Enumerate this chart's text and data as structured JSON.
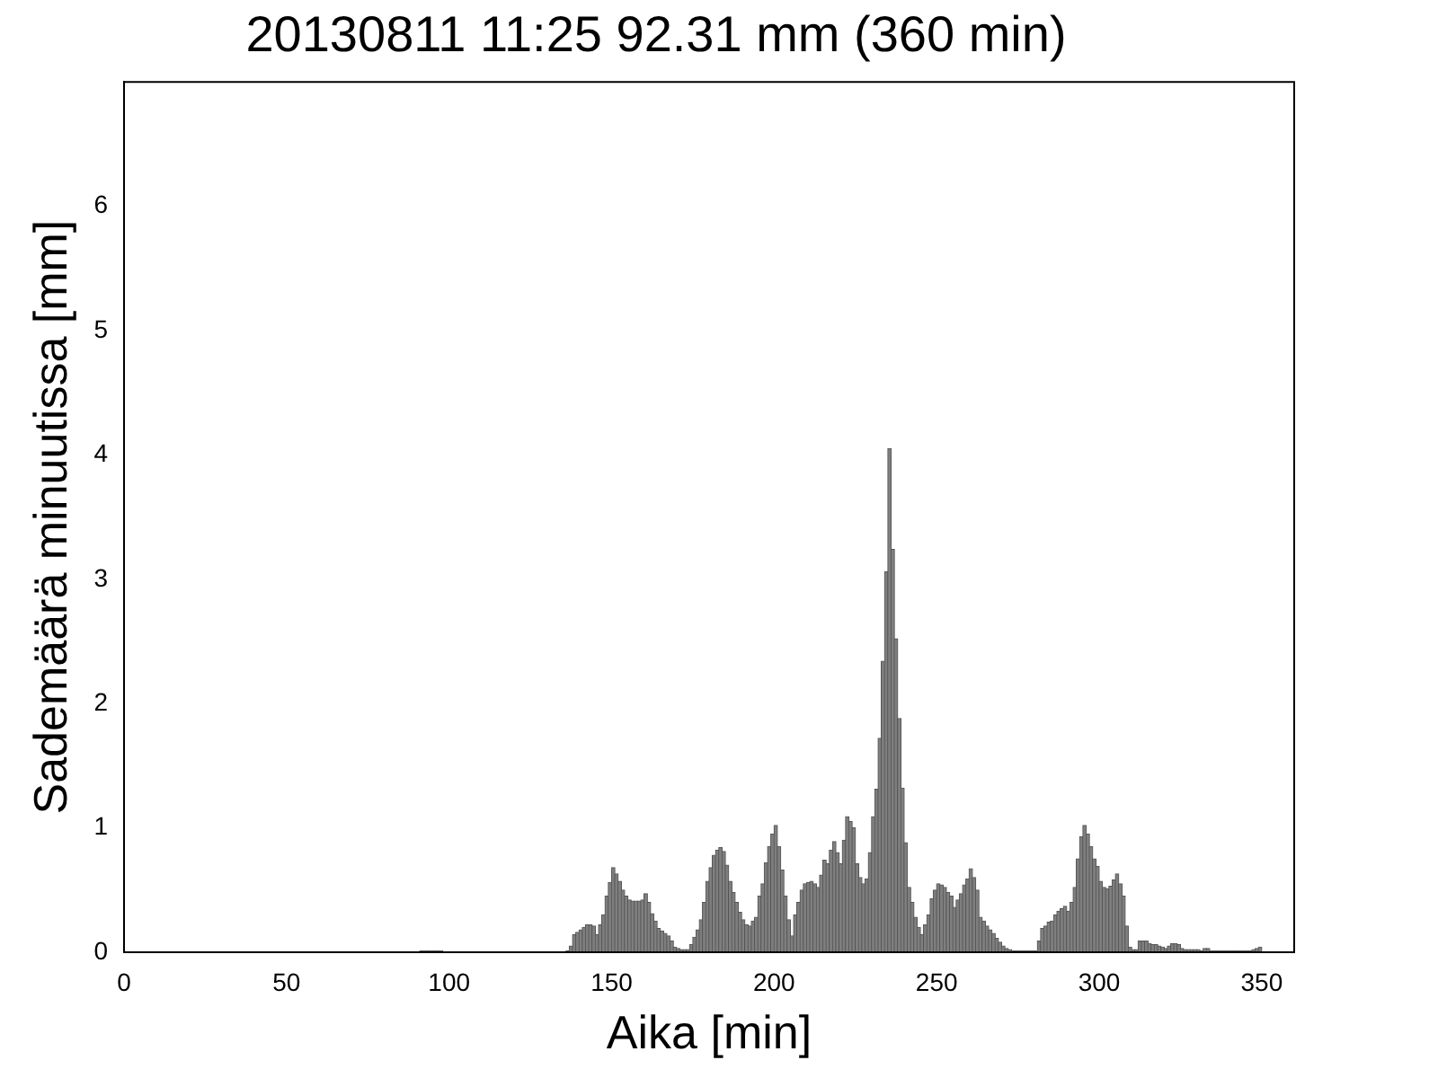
{
  "chart_data": {
    "type": "histogram",
    "title": "20130811 11:25 92.31 mm (360 min)",
    "xlabel": "Aika [min]",
    "ylabel": "Sademäärä minuutissa [mm]",
    "bins": [
      0,
      1,
      2,
      3,
      4,
      5,
      6,
      7,
      8,
      9,
      10,
      11,
      12,
      13,
      14,
      15,
      16,
      17,
      18,
      19,
      20,
      21,
      22,
      23,
      24,
      25,
      26,
      27,
      28,
      29,
      30,
      31,
      32,
      33,
      34,
      35,
      36,
      37,
      38,
      39,
      40,
      41,
      42,
      43,
      44,
      45,
      46,
      47,
      48,
      49,
      50,
      51,
      52,
      53,
      54,
      55,
      56,
      57,
      58,
      59,
      60,
      61,
      62,
      63,
      64,
      65,
      66,
      67,
      68,
      69,
      70,
      71,
      72,
      73,
      74,
      75,
      76,
      77,
      78,
      79,
      80,
      81,
      82,
      83,
      84,
      85,
      86,
      87,
      88,
      89,
      90,
      91,
      92,
      93,
      94,
      95,
      96,
      97,
      98,
      99,
      100,
      101,
      102,
      103,
      104,
      105,
      106,
      107,
      108,
      109,
      110,
      111,
      112,
      113,
      114,
      115,
      116,
      117,
      118,
      119,
      120,
      121,
      122,
      123,
      124,
      125,
      126,
      127,
      128,
      129,
      130,
      131,
      132,
      133,
      134,
      135,
      136,
      137,
      138,
      139,
      140,
      141,
      142,
      143,
      144,
      145,
      146,
      147,
      148,
      149,
      150,
      151,
      152,
      153,
      154,
      155,
      156,
      157,
      158,
      159,
      160,
      161,
      162,
      163,
      164,
      165,
      166,
      167,
      168,
      169,
      170,
      171,
      172,
      173,
      174,
      175,
      176,
      177,
      178,
      179,
      180,
      181,
      182,
      183,
      184,
      185,
      186,
      187,
      188,
      189,
      190,
      191,
      192,
      193,
      194,
      195,
      196,
      197,
      198,
      199,
      200,
      201,
      202,
      203,
      204,
      205,
      206,
      207,
      208,
      209,
      210,
      211,
      212,
      213,
      214,
      215,
      216,
      217,
      218,
      219,
      220,
      221,
      222,
      223,
      224,
      225,
      226,
      227,
      228,
      229,
      230,
      231,
      232,
      233,
      234,
      235,
      236,
      237,
      238,
      239,
      240,
      241,
      242,
      243,
      244,
      245,
      246,
      247,
      248,
      249,
      250,
      251,
      252,
      253,
      254,
      255,
      256,
      257,
      258,
      259,
      260,
      261,
      262,
      263,
      264,
      265,
      266,
      267,
      268,
      269,
      270,
      271,
      272,
      273,
      274,
      275,
      276,
      277,
      278,
      279,
      280,
      281,
      282,
      283,
      284,
      285,
      286,
      287,
      288,
      289,
      290,
      291,
      292,
      293,
      294,
      295,
      296,
      297,
      298,
      299,
      300,
      301,
      302,
      303,
      304,
      305,
      306,
      307,
      308,
      309,
      310,
      311,
      312,
      313,
      314,
      315,
      316,
      317,
      318,
      319,
      320,
      321,
      322,
      323,
      324,
      325,
      326,
      327,
      328,
      329,
      330,
      331,
      332,
      333,
      334,
      335,
      336,
      337,
      338,
      339,
      340,
      341,
      342,
      343,
      344,
      345,
      346,
      347,
      348,
      349,
      350,
      351,
      352,
      353,
      354,
      355,
      356,
      357,
      358,
      359,
      360
    ],
    "values": [
      0,
      0,
      0,
      0,
      0,
      0,
      0,
      0,
      0,
      0,
      0,
      0,
      0,
      0,
      0,
      0,
      0,
      0,
      0,
      0,
      0,
      0,
      0,
      0,
      0,
      0,
      0,
      0,
      0,
      0,
      0,
      0,
      0,
      0,
      0,
      0,
      0,
      0,
      0,
      0,
      0,
      0,
      0,
      0,
      0,
      0,
      0,
      0,
      0,
      0,
      0,
      0,
      0,
      0,
      0,
      0,
      0,
      0,
      0,
      0,
      0,
      0,
      0,
      0,
      0,
      0,
      0,
      0,
      0,
      0,
      0,
      0,
      0,
      0,
      0,
      0,
      0,
      0,
      0,
      0,
      0,
      0,
      0,
      0,
      0,
      0,
      0,
      0,
      0,
      0,
      0,
      0.01,
      0.01,
      0.01,
      0.01,
      0.01,
      0.01,
      0.01,
      0,
      0,
      0,
      0,
      0,
      0,
      0,
      0,
      0,
      0,
      0,
      0,
      0,
      0,
      0,
      0,
      0,
      0,
      0,
      0,
      0,
      0,
      0,
      0,
      0,
      0,
      0,
      0,
      0,
      0,
      0,
      0,
      0,
      0,
      0,
      0,
      0,
      0,
      0.01,
      0.05,
      0.14,
      0.16,
      0.18,
      0.2,
      0.22,
      0.22,
      0.21,
      0.14,
      0.22,
      0.3,
      0.45,
      0.56,
      0.68,
      0.63,
      0.57,
      0.5,
      0.45,
      0.42,
      0.41,
      0.41,
      0.41,
      0.42,
      0.47,
      0.4,
      0.31,
      0.25,
      0.19,
      0.17,
      0.15,
      0.13,
      0.09,
      0.04,
      0.03,
      0.02,
      0.02,
      0.02,
      0.06,
      0.12,
      0.18,
      0.26,
      0.4,
      0.57,
      0.68,
      0.78,
      0.82,
      0.84,
      0.81,
      0.7,
      0.57,
      0.48,
      0.4,
      0.32,
      0.26,
      0.22,
      0.21,
      0.25,
      0.28,
      0.45,
      0.55,
      0.72,
      0.85,
      0.95,
      1.02,
      0.85,
      0.66,
      0.45,
      0.26,
      0.13,
      0.3,
      0.4,
      0.5,
      0.55,
      0.56,
      0.57,
      0.55,
      0.52,
      0.62,
      0.74,
      0.71,
      0.82,
      0.89,
      0.8,
      0.71,
      0.9,
      1.09,
      1.05,
      1.0,
      0.71,
      0.6,
      0.55,
      0.59,
      0.8,
      1.09,
      1.31,
      1.72,
      2.34,
      3.06,
      4.05,
      3.24,
      2.52,
      1.88,
      1.32,
      0.88,
      0.52,
      0.4,
      0.28,
      0.2,
      0.14,
      0.22,
      0.3,
      0.43,
      0.5,
      0.55,
      0.54,
      0.52,
      0.48,
      0.45,
      0.36,
      0.42,
      0.47,
      0.54,
      0.59,
      0.67,
      0.6,
      0.5,
      0.28,
      0.25,
      0.21,
      0.18,
      0.15,
      0.11,
      0.08,
      0.05,
      0.03,
      0.02,
      0.01,
      0.01,
      0.01,
      0.01,
      0.01,
      0.01,
      0.01,
      0.01,
      0.09,
      0.19,
      0.21,
      0.24,
      0.25,
      0.3,
      0.33,
      0.35,
      0.37,
      0.33,
      0.4,
      0.52,
      0.75,
      0.93,
      1.02,
      0.95,
      0.85,
      0.75,
      0.69,
      0.57,
      0.52,
      0.51,
      0.53,
      0.58,
      0.63,
      0.55,
      0.45,
      0.21,
      0.04,
      0.02,
      0.02,
      0.09,
      0.09,
      0.09,
      0.07,
      0.06,
      0.06,
      0.05,
      0.04,
      0.03,
      0.05,
      0.07,
      0.07,
      0.06,
      0.03,
      0.02,
      0.02,
      0.02,
      0.02,
      0.02,
      0.01,
      0.03,
      0.03,
      0.01,
      0.01,
      0.01,
      0.01,
      0.01,
      0.01,
      0.01,
      0.01,
      0.01,
      0.01,
      0.01,
      0.01,
      0.01,
      0.02,
      0.03,
      0.04,
      0,
      0,
      0,
      0,
      0,
      0,
      0,
      0,
      0,
      0
    ],
    "color": "#7f7f7f",
    "xlim": [
      0,
      360
    ],
    "xticks": [
      0,
      50,
      100,
      150,
      200,
      250,
      300,
      350
    ],
    "ylim": [
      0,
      7
    ],
    "yticks": [
      0,
      1,
      2,
      3,
      4,
      5,
      6
    ],
    "grid": false,
    "legend": false
  }
}
